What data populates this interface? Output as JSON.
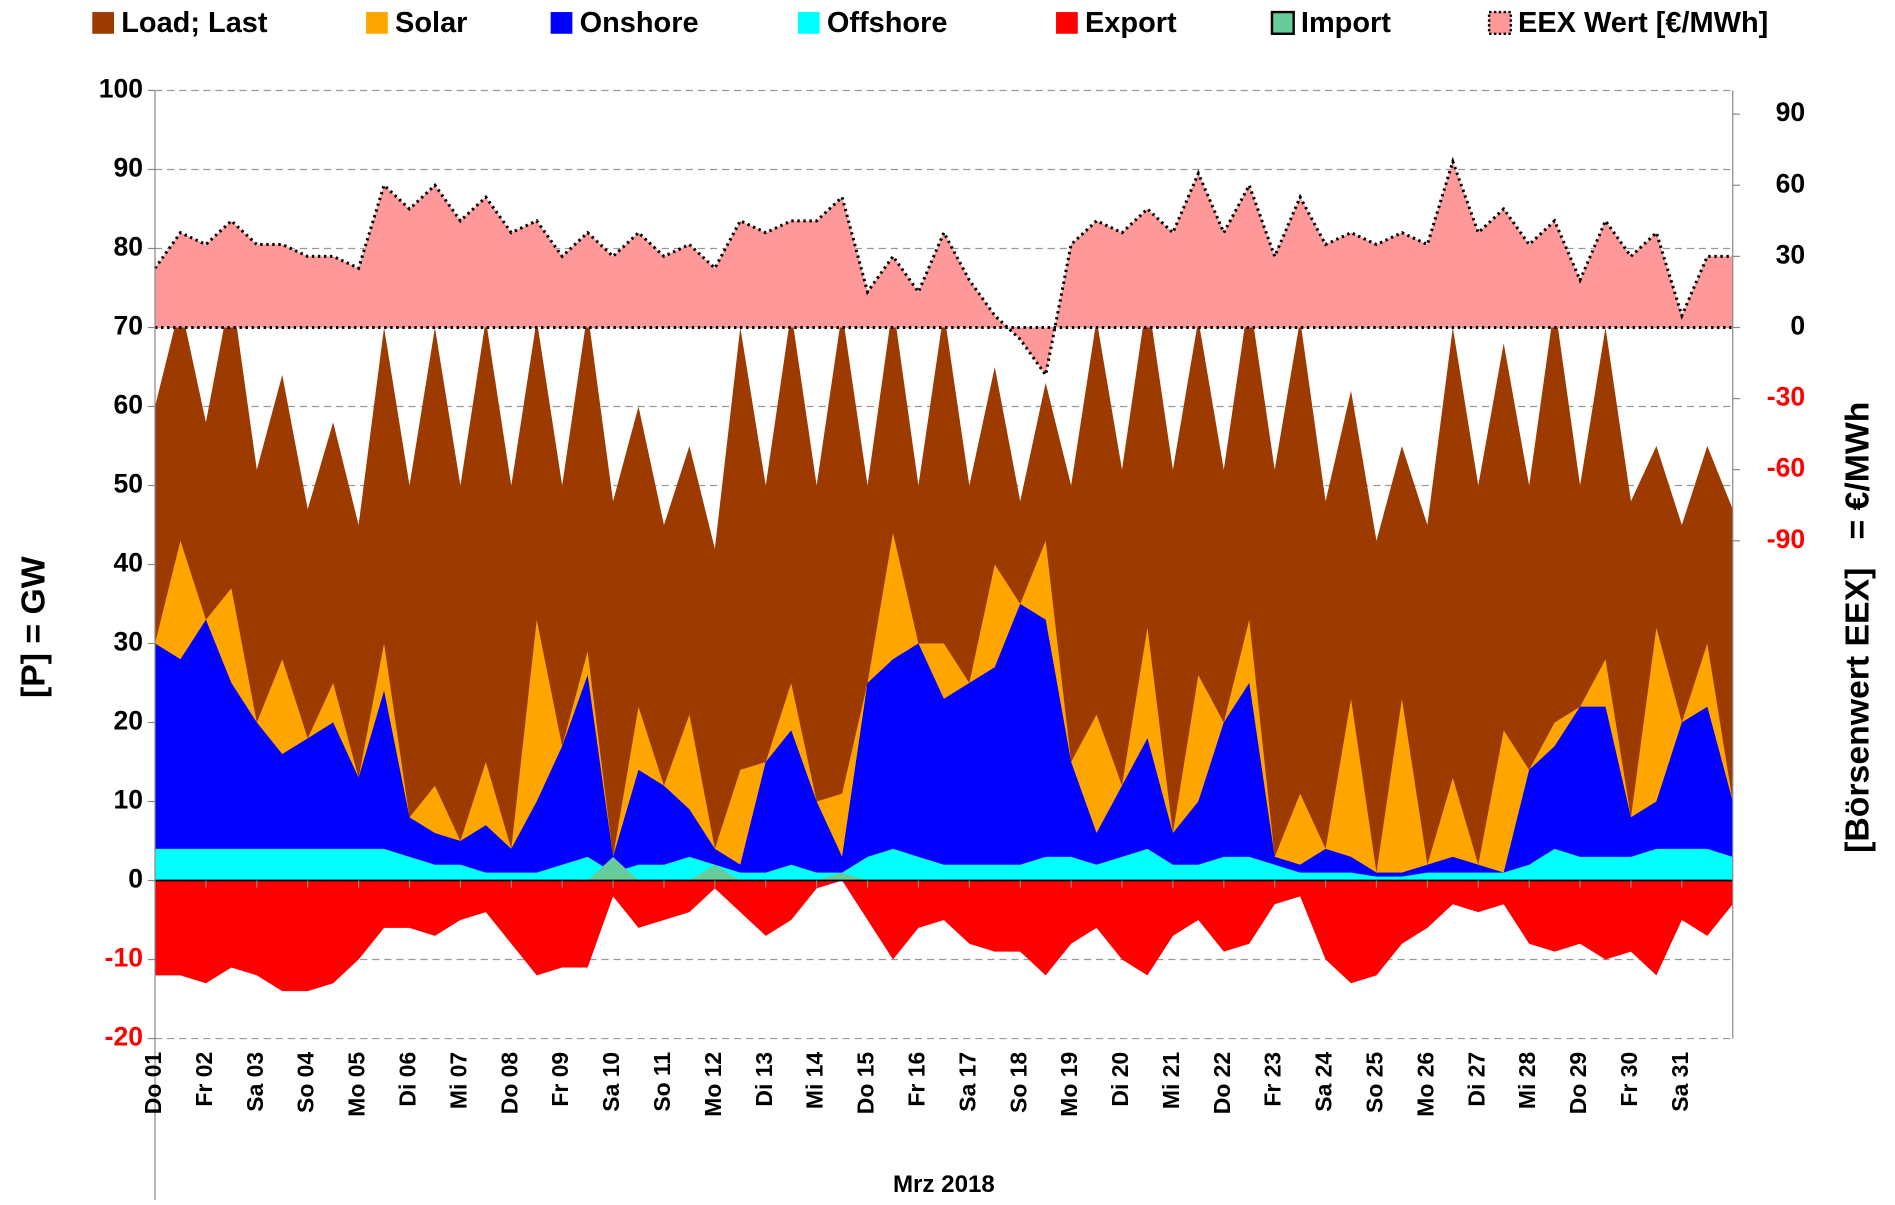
{
  "chart_data": {
    "type": "area",
    "xlabel": "Mrz 2018",
    "ylabel": "[P] = GW",
    "y2label": "[Börsenwert EEX]   = €/MWh",
    "xlim": [
      1,
      32
    ],
    "xticks": [
      {
        "value": 1,
        "label": "Do 01"
      },
      {
        "value": 2,
        "label": "Fr 02"
      },
      {
        "value": 3,
        "label": "Sa 03"
      },
      {
        "value": 4,
        "label": "So 04"
      },
      {
        "value": 5,
        "label": "Mo 05"
      },
      {
        "value": 6,
        "label": "Di 06"
      },
      {
        "value": 7,
        "label": "Mi 07"
      },
      {
        "value": 8,
        "label": "Do 08"
      },
      {
        "value": 9,
        "label": "Fr 09"
      },
      {
        "value": 10,
        "label": "Sa 10"
      },
      {
        "value": 11,
        "label": "So 11"
      },
      {
        "value": 12,
        "label": "Mo 12"
      },
      {
        "value": 13,
        "label": "Di 13"
      },
      {
        "value": 14,
        "label": "Mi 14"
      },
      {
        "value": 15,
        "label": "Do 15"
      },
      {
        "value": 16,
        "label": "Fr 16"
      },
      {
        "value": 17,
        "label": "Sa 17"
      },
      {
        "value": 18,
        "label": "So 18"
      },
      {
        "value": 19,
        "label": "Mo 19"
      },
      {
        "value": 20,
        "label": "Di 20"
      },
      {
        "value": 21,
        "label": "Mi 21"
      },
      {
        "value": 22,
        "label": "Do 22"
      },
      {
        "value": 23,
        "label": "Fr 23"
      },
      {
        "value": 24,
        "label": "Sa 24"
      },
      {
        "value": 25,
        "label": "So 25"
      },
      {
        "value": 26,
        "label": "Mo 26"
      },
      {
        "value": 27,
        "label": "Di 27"
      },
      {
        "value": 28,
        "label": "Mi 28"
      },
      {
        "value": 29,
        "label": "Do 29"
      },
      {
        "value": 30,
        "label": "Fr 30"
      },
      {
        "value": 31,
        "label": "Sa 31"
      }
    ],
    "ylim": [
      -20,
      100
    ],
    "yticks": [
      100,
      90,
      80,
      70,
      60,
      50,
      40,
      30,
      20,
      10,
      0,
      -10,
      -20
    ],
    "y2lim": [
      -300,
      100
    ],
    "y2ticks": [
      90,
      60,
      30,
      0,
      -30,
      -60,
      -90
    ],
    "negative_tick_color": "#ff0000",
    "grid": true,
    "legend": "top",
    "x": [
      1,
      1.5,
      2,
      2.5,
      3,
      3.5,
      4,
      4.5,
      5,
      5.5,
      6,
      6.5,
      7,
      7.5,
      8,
      8.5,
      9,
      9.5,
      10,
      10.5,
      11,
      11.5,
      12,
      12.5,
      13,
      13.5,
      14,
      14.5,
      15,
      15.5,
      16,
      16.5,
      17,
      17.5,
      18,
      18.5,
      19,
      19.5,
      20,
      20.5,
      21,
      21.5,
      22,
      22.5,
      23,
      23.5,
      24,
      24.5,
      25,
      25.5,
      26,
      26.5,
      27,
      27.5,
      28,
      28.5,
      29,
      29.5,
      30,
      30.5,
      31,
      31.5,
      32
    ],
    "series": [
      {
        "name": "Load; Last",
        "color": "#9c3a00",
        "stacked": false,
        "values": [
          60,
          73,
          58,
          75,
          52,
          64,
          47,
          58,
          45,
          70,
          50,
          70,
          50,
          71,
          50,
          71,
          50,
          72,
          48,
          60,
          45,
          55,
          42,
          70,
          50,
          72,
          50,
          72,
          50,
          73,
          50,
          72,
          50,
          65,
          48,
          63,
          50,
          71,
          52,
          74,
          52,
          71,
          52,
          74,
          52,
          71,
          48,
          62,
          43,
          55,
          45,
          70,
          50,
          68,
          50,
          73,
          50,
          70,
          48,
          55,
          45,
          55,
          47
        ]
      },
      {
        "name": "Solar",
        "color": "#ffa500",
        "stacked": true,
        "values": [
          0,
          15,
          0,
          12,
          0,
          12,
          0,
          5,
          0,
          6,
          0,
          6,
          0,
          8,
          0,
          23,
          0,
          3,
          0,
          8,
          0,
          12,
          0,
          12,
          0,
          6,
          0,
          8,
          0,
          16,
          0,
          7,
          0,
          13,
          0,
          10,
          0,
          15,
          0,
          14,
          0,
          16,
          0,
          8,
          0,
          9,
          0,
          20,
          0,
          22,
          0,
          10,
          0,
          18,
          0,
          3,
          0,
          6,
          0,
          22,
          0,
          8,
          0
        ]
      },
      {
        "name": "Onshore",
        "color": "#0000ff",
        "stacked": true,
        "values": [
          26,
          24,
          29,
          21,
          16,
          12,
          14,
          16,
          9,
          20,
          5,
          4,
          3,
          6,
          3,
          9,
          15,
          23,
          2,
          12,
          10,
          6,
          2,
          1,
          14,
          17,
          9,
          2,
          22,
          24,
          27,
          21,
          23,
          25,
          33,
          30,
          12,
          4,
          9,
          14,
          4,
          8,
          17,
          22,
          1,
          1,
          3,
          2,
          0.5,
          0.5,
          1,
          2,
          1,
          0,
          12,
          13,
          19,
          19,
          5,
          6,
          16,
          18,
          7
        ]
      },
      {
        "name": "Offshore",
        "color": "#00ffff",
        "stacked": true,
        "values": [
          4,
          4,
          4,
          4,
          4,
          4,
          4,
          4,
          4,
          4,
          3,
          2,
          2,
          1,
          1,
          1,
          2,
          3,
          1,
          2,
          2,
          3,
          2,
          1,
          1,
          2,
          1,
          1,
          3,
          4,
          3,
          2,
          2,
          2,
          2,
          3,
          3,
          2,
          3,
          4,
          2,
          2,
          3,
          3,
          2,
          1,
          1,
          1,
          0.5,
          0.5,
          1,
          1,
          1,
          1,
          2,
          4,
          3,
          3,
          3,
          4,
          4,
          4,
          3
        ]
      },
      {
        "name": "Export",
        "color": "#ff0000",
        "stacked": false,
        "values": [
          -12,
          -12,
          -13,
          -11,
          -12,
          -14,
          -14,
          -13,
          -10,
          -6,
          -6,
          -7,
          -5,
          -4,
          -8,
          -12,
          -11,
          -11,
          -2,
          -6,
          -5,
          -4,
          -1,
          -4,
          -7,
          -5,
          -1,
          0,
          -5,
          -10,
          -6,
          -5,
          -8,
          -9,
          -9,
          -12,
          -8,
          -6,
          -10,
          -12,
          -7,
          -5,
          -9,
          -8,
          -3,
          -2,
          -10,
          -13,
          -12,
          -8,
          -6,
          -3,
          -4,
          -3,
          -8,
          -9,
          -8,
          -10,
          -9,
          -12,
          -5,
          -7,
          -3
        ]
      },
      {
        "name": "Import",
        "color": "#66cc99",
        "stacked": false,
        "values": [
          0,
          0,
          0,
          0,
          0,
          0,
          0,
          0,
          0,
          0,
          0,
          0,
          0,
          0,
          0,
          0,
          0,
          0,
          3,
          0,
          0,
          0,
          2,
          0,
          0,
          0,
          0,
          1,
          0,
          0,
          0,
          0,
          0,
          0,
          0,
          0,
          0,
          0,
          0,
          0,
          0,
          0,
          0,
          0,
          0,
          0,
          0,
          0,
          0,
          0,
          0,
          0,
          0,
          0,
          0,
          0,
          0,
          0,
          0,
          0,
          0,
          0,
          0
        ]
      },
      {
        "name": "EEX Wert [€/MWh]",
        "color": "#ff9999",
        "stacked": false,
        "axis": "y2",
        "line": "dotted",
        "values": [
          25,
          40,
          35,
          45,
          35,
          35,
          30,
          30,
          25,
          60,
          50,
          60,
          45,
          55,
          40,
          45,
          30,
          40,
          30,
          40,
          30,
          35,
          25,
          45,
          40,
          45,
          45,
          55,
          15,
          30,
          15,
          40,
          20,
          5,
          -5,
          -20,
          35,
          45,
          40,
          50,
          40,
          65,
          40,
          60,
          30,
          55,
          35,
          40,
          35,
          40,
          35,
          70,
          40,
          50,
          35,
          45,
          20,
          45,
          30,
          40,
          5,
          30,
          30
        ]
      }
    ]
  }
}
